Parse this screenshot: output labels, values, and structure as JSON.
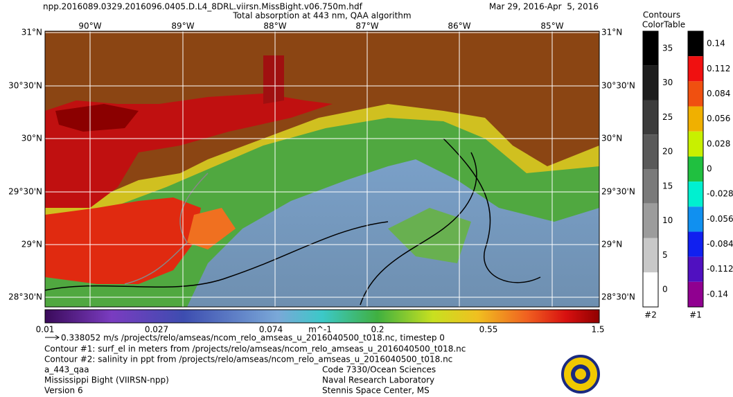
{
  "header": {
    "filename": "npp.2016089.0329.2016096.0405.D.L4_8DRL.viirsn.MissBight.v06.750m.hdf",
    "title": "Total absorption at 443 nm, QAA algorithm",
    "date": "Mar 29, 2016-Apr  5, 2016"
  },
  "map": {
    "lon_labels": [
      "90°W",
      "89°W",
      "88°W",
      "87°W",
      "86°W",
      "85°W"
    ],
    "lat_labels": [
      "31°N",
      "30°30'N",
      "30°N",
      "29°30'N",
      "29°N",
      "28°30'N"
    ]
  },
  "colorbar": {
    "labels": [
      "0.01",
      "0.027",
      "0.074",
      "m^-1",
      "0.2",
      "0.55",
      "1.5"
    ]
  },
  "legend": {
    "title_line1": "Contours",
    "title_line2": "ColorTable",
    "contour_labels": [
      "35",
      "30",
      "25",
      "20",
      "15",
      "10",
      "5",
      "0"
    ],
    "contour_id": "#2",
    "color_labels": [
      "0.14",
      "0.112",
      "0.084",
      "0.056",
      "0.028",
      "0",
      "-0.028",
      "-0.056",
      "-0.084",
      "-0.112",
      "-0.14"
    ],
    "color_id": "#1"
  },
  "notes": {
    "vector": "0.338052 m/s /projects/relo/amseas/ncom_relo_amseas_u_2016040500_t018.nc, timestep 0",
    "contour1": "Contour #1: surf_el in meters from /projects/relo/amseas/ncom_relo_amseas_u_2016040500_t018.nc",
    "contour2": "Contour #2: salinity in ppt from /projects/relo/amseas/ncom_relo_amseas_u_2016040500_t018.nc"
  },
  "footer": {
    "left": [
      "a_443_qaa",
      "Mississippi Bight (VIIRSN-npp)",
      "Version 6"
    ],
    "right": [
      "Code 7330/Ocean Sciences",
      "Naval Research Laboratory",
      "Stennis Space Center, MS"
    ]
  }
}
